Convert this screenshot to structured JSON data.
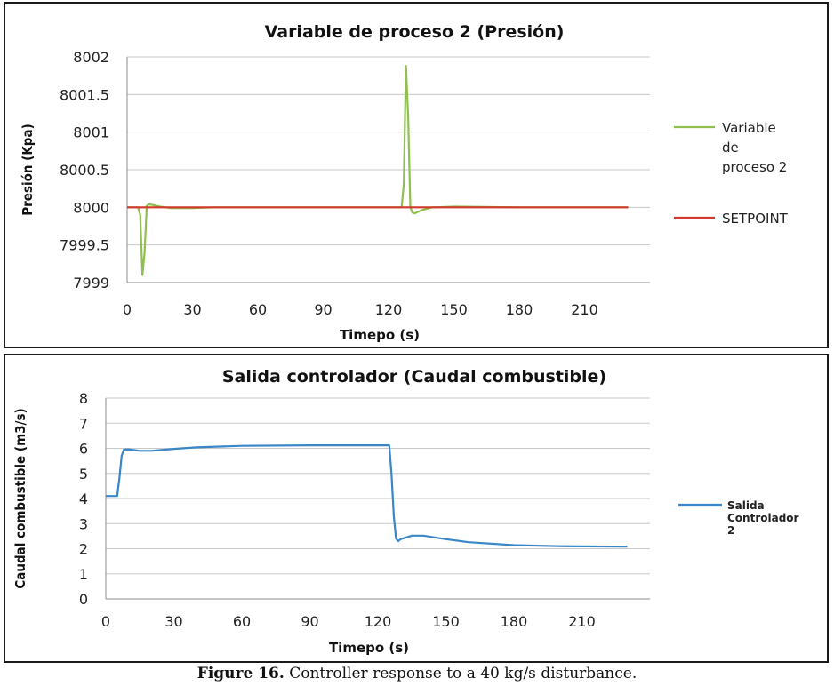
{
  "caption": {
    "label": "Figure 16.",
    "text": " Controller response to a 40 kg/s disturbance."
  },
  "chart_data": [
    {
      "type": "line",
      "title": "Variable de proceso  2 (Presión)",
      "xlabel": "Timepo (s)",
      "ylabel": "Presión (Kpa)",
      "xlim": [
        0,
        240
      ],
      "ylim": [
        7999,
        8002
      ],
      "xticks": [
        0,
        30,
        60,
        90,
        120,
        150,
        180,
        210
      ],
      "yticks": [
        7999,
        7999.5,
        8000,
        8000.5,
        8001,
        8001.5,
        8002
      ],
      "ytick_labels": [
        "7999",
        "7999.5",
        "8000",
        "8000.5",
        "8001",
        "8001.5",
        "8002"
      ],
      "legend_position": "right",
      "series": [
        {
          "name": "Variable de proceso 2",
          "color": "#8fbf4f",
          "x": [
            0,
            4,
            5,
            6,
            7,
            8,
            9,
            10,
            12,
            15,
            20,
            30,
            40,
            60,
            90,
            120,
            126,
            127,
            128,
            129,
            130,
            131,
            132,
            135,
            140,
            150,
            180,
            230
          ],
          "y": [
            8000,
            8000,
            8000,
            7999.9,
            7999.1,
            7999.4,
            8000.02,
            8000.04,
            8000.03,
            8000.01,
            7999.99,
            7999.99,
            8000,
            8000,
            8000,
            8000,
            8000,
            8000.3,
            8001.88,
            8001.2,
            8000,
            7999.93,
            7999.92,
            7999.96,
            8000,
            8000.01,
            8000,
            8000
          ]
        },
        {
          "name": "SETPOINT",
          "color": "#d03a2a",
          "x": [
            0,
            230
          ],
          "y": [
            8000,
            8000
          ]
        }
      ]
    },
    {
      "type": "line",
      "title": "Salida controlador (Caudal combustible)",
      "xlabel": "Timepo (s)",
      "ylabel": "Caudal combustible (m3/s)",
      "xlim": [
        0,
        240
      ],
      "ylim": [
        0,
        8
      ],
      "xticks": [
        0,
        30,
        60,
        90,
        120,
        150,
        180,
        210
      ],
      "yticks": [
        0,
        1,
        2,
        3,
        4,
        5,
        6,
        7,
        8
      ],
      "ytick_labels": [
        "0",
        "1",
        "2",
        "3",
        "4",
        "5",
        "6",
        "7",
        "8"
      ],
      "legend_position": "right",
      "series": [
        {
          "name": "Salida Controlador 2",
          "color": "#3a86c8",
          "x": [
            0,
            5,
            6,
            7,
            8,
            10,
            15,
            20,
            30,
            40,
            60,
            90,
            125,
            126,
            127,
            128,
            129,
            130,
            135,
            140,
            150,
            160,
            180,
            200,
            230
          ],
          "y": [
            4.1,
            4.1,
            4.8,
            5.7,
            5.95,
            5.96,
            5.9,
            5.9,
            5.98,
            6.04,
            6.1,
            6.12,
            6.12,
            5.0,
            3.3,
            2.4,
            2.3,
            2.38,
            2.52,
            2.52,
            2.38,
            2.26,
            2.14,
            2.1,
            2.08
          ]
        }
      ]
    }
  ],
  "legends": [
    {
      "lines": [
        "Variable",
        "de",
        "proceso 2"
      ]
    },
    {
      "lines": [
        "SETPOINT"
      ]
    },
    {
      "lines": [
        "Salida",
        "Controlador",
        "2"
      ]
    }
  ]
}
